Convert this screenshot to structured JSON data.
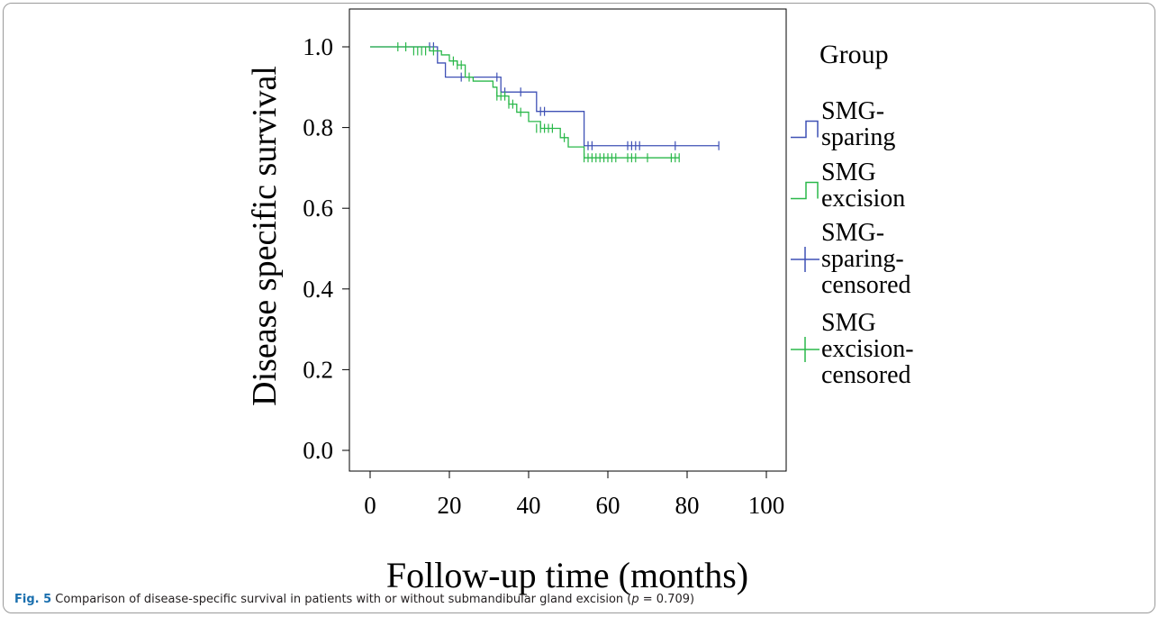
{
  "caption": {
    "label": "Fig. 5",
    "text": " Comparison of disease-specific survival in patients with or without submandibular gland excision (",
    "p_symbol": "p",
    "p_value": " = 0.709)"
  },
  "colors": {
    "sparing": "#3f51b5",
    "excision": "#2ab84a",
    "axis": "#000000"
  },
  "chart_data": {
    "type": "line",
    "xlabel": "Follow-up time (months)",
    "ylabel": "Disease specific survival",
    "xlim": [
      0,
      100
    ],
    "ylim": [
      0,
      1.0
    ],
    "xticks": [
      "0",
      "20",
      "40",
      "60",
      "80",
      "100"
    ],
    "yticks": [
      "0.0",
      "0.2",
      "0.4",
      "0.6",
      "0.8",
      "1.0"
    ],
    "xtick_values": [
      0,
      20,
      40,
      60,
      80,
      100
    ],
    "ytick_values": [
      0.0,
      0.2,
      0.4,
      0.6,
      0.8,
      1.0
    ],
    "grid": false,
    "legend_placement": "right",
    "legend_title": "Group",
    "legend": [
      {
        "label_lines": [
          "SMG-",
          "sparing"
        ],
        "kind": "step",
        "color": "sparing"
      },
      {
        "label_lines": [
          "SMG",
          "excision"
        ],
        "kind": "step",
        "color": "excision"
      },
      {
        "label_lines": [
          "SMG-",
          "sparing-",
          "censored"
        ],
        "kind": "censor",
        "color": "sparing"
      },
      {
        "label_lines": [
          "SMG",
          "excision-",
          "censored"
        ],
        "kind": "censor",
        "color": "excision"
      }
    ],
    "series": [
      {
        "name": "SMG-sparing",
        "color": "sparing",
        "steps": [
          [
            0,
            1.0
          ],
          [
            17,
            0.96
          ],
          [
            19,
            0.925
          ],
          [
            33,
            0.888
          ],
          [
            42,
            0.84
          ],
          [
            54,
            0.755
          ],
          [
            88,
            0.755
          ]
        ],
        "censored": [
          [
            15,
            1.0
          ],
          [
            16,
            1.0
          ],
          [
            23,
            0.925
          ],
          [
            32,
            0.925
          ],
          [
            34,
            0.888
          ],
          [
            38,
            0.888
          ],
          [
            43,
            0.84
          ],
          [
            44,
            0.84
          ],
          [
            55,
            0.755
          ],
          [
            56,
            0.755
          ],
          [
            65,
            0.755
          ],
          [
            66,
            0.755
          ],
          [
            67,
            0.755
          ],
          [
            68,
            0.755
          ],
          [
            77,
            0.755
          ],
          [
            88,
            0.755
          ]
        ]
      },
      {
        "name": "SMG excision",
        "color": "excision",
        "steps": [
          [
            0,
            1.0
          ],
          [
            15,
            0.99
          ],
          [
            18,
            0.98
          ],
          [
            20,
            0.965
          ],
          [
            22,
            0.955
          ],
          [
            24,
            0.925
          ],
          [
            26,
            0.915
          ],
          [
            31,
            0.9
          ],
          [
            32,
            0.878
          ],
          [
            35,
            0.858
          ],
          [
            37,
            0.838
          ],
          [
            40,
            0.815
          ],
          [
            43,
            0.798
          ],
          [
            48,
            0.775
          ],
          [
            50,
            0.752
          ],
          [
            54,
            0.725
          ],
          [
            78,
            0.725
          ]
        ],
        "censored": [
          [
            7,
            1.0
          ],
          [
            9,
            1.0
          ],
          [
            11,
            0.99
          ],
          [
            12,
            0.99
          ],
          [
            13,
            0.99
          ],
          [
            14,
            0.99
          ],
          [
            16,
            0.99
          ],
          [
            21,
            0.965
          ],
          [
            22,
            0.955
          ],
          [
            23,
            0.955
          ],
          [
            25,
            0.925
          ],
          [
            32,
            0.878
          ],
          [
            33,
            0.878
          ],
          [
            34,
            0.878
          ],
          [
            35,
            0.858
          ],
          [
            36,
            0.858
          ],
          [
            38,
            0.838
          ],
          [
            42,
            0.798
          ],
          [
            43,
            0.798
          ],
          [
            44,
            0.798
          ],
          [
            45,
            0.798
          ],
          [
            46,
            0.798
          ],
          [
            49,
            0.775
          ],
          [
            54,
            0.725
          ],
          [
            55,
            0.725
          ],
          [
            56,
            0.725
          ],
          [
            57,
            0.725
          ],
          [
            58,
            0.725
          ],
          [
            59,
            0.725
          ],
          [
            60,
            0.725
          ],
          [
            61,
            0.725
          ],
          [
            62,
            0.725
          ],
          [
            65,
            0.725
          ],
          [
            66,
            0.725
          ],
          [
            67,
            0.725
          ],
          [
            70,
            0.725
          ],
          [
            76,
            0.725
          ],
          [
            77,
            0.725
          ],
          [
            78,
            0.725
          ]
        ]
      }
    ]
  }
}
